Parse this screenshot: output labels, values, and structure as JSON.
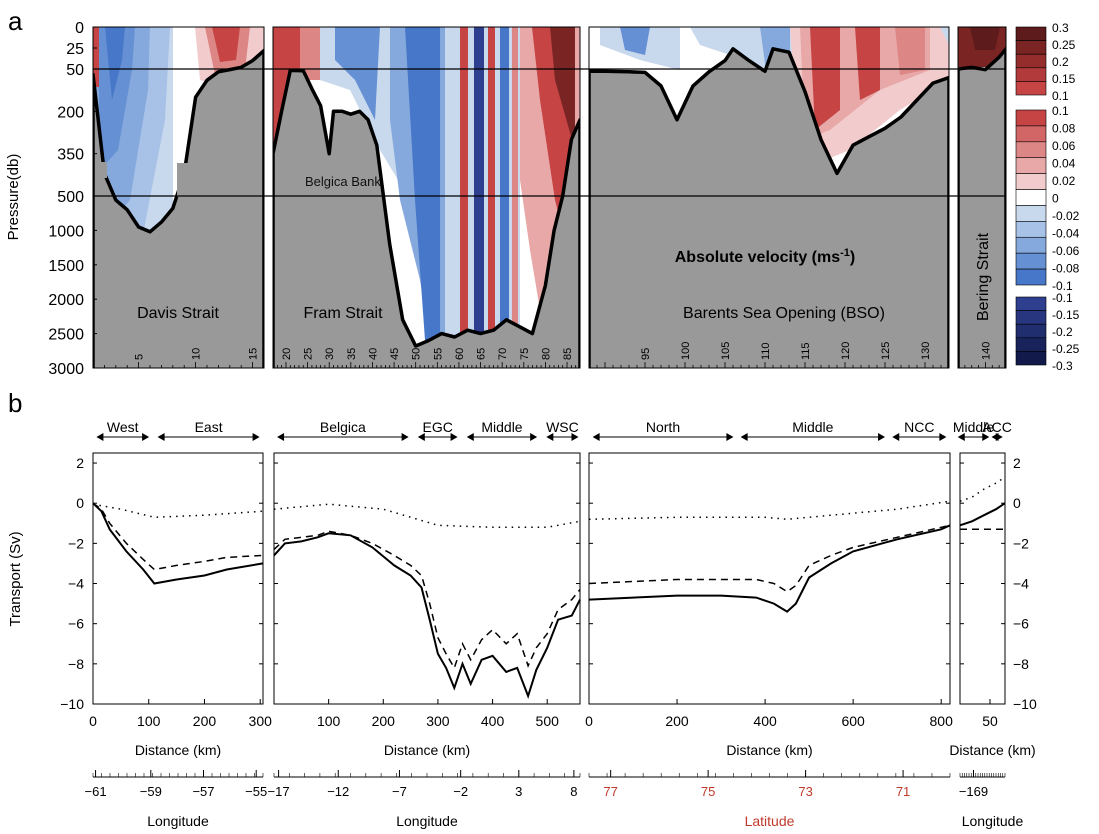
{
  "panel_labels": [
    "a",
    "b"
  ],
  "colors": {
    "land": "#999999",
    "red_strong": [
      "#5e1b1b",
      "#7a2424",
      "#962d2d",
      "#b33a3a",
      "#c64444"
    ],
    "red_weak": [
      "#c64444",
      "#d26565",
      "#dd8686",
      "#e8a8a8",
      "#f2cccc"
    ],
    "blue_weak": [
      "#c8d9ee",
      "#a7c2e6",
      "#86a9dd",
      "#6590d3",
      "#4777c8"
    ],
    "blue_strong": [
      "#2f3f8f",
      "#27367e",
      "#202d6e",
      "#18235c",
      "#111a4b"
    ]
  },
  "top": {
    "ylabel": "Pressure(db)",
    "ytick_labels": [
      "0",
      "25",
      "50",
      "200",
      "350",
      "500",
      "1000",
      "1500",
      "2000",
      "2500",
      "3000"
    ],
    "center_title_main": "Absolute velocity (ms",
    "center_title_sup": "-1",
    "center_title_end": ")",
    "annotation": "Belgica Bank",
    "panels": [
      {
        "name": "Davis Strait",
        "station_ticks": [
          "5",
          "10",
          "15"
        ]
      },
      {
        "name": "Fram Strait",
        "station_ticks": [
          "20",
          "25",
          "30",
          "35",
          "40",
          "45",
          "50",
          "55",
          "60",
          "65",
          "70",
          "75",
          "80",
          "85"
        ]
      },
      {
        "name": "Barents Sea Opening (BSO)",
        "station_ticks": [
          "95",
          "100",
          "105",
          "110",
          "115",
          "120",
          "125",
          "130"
        ]
      },
      {
        "name": "Bering Strait",
        "station_ticks": [
          "140"
        ]
      }
    ],
    "colorbars": [
      {
        "labels": [
          "0.3",
          "0.25",
          "0.2",
          "0.15",
          "0.1"
        ]
      },
      {
        "labels": [
          "0.1",
          "0.08",
          "0.06",
          "0.04",
          "0.02",
          "0",
          "-0.02",
          "-0.04",
          "-0.06",
          "-0.08",
          "-0.1"
        ]
      },
      {
        "labels": [
          "-0.1",
          "-0.15",
          "-0.2",
          "-0.25",
          "-0.3"
        ]
      }
    ]
  },
  "bottom": {
    "ylabel": "Transport (Sv)",
    "ytick_labels": [
      "2",
      "0",
      "−2",
      "−4",
      "−6",
      "−8",
      "−10"
    ],
    "xlabel": "Distance (km)",
    "coord_label": "Longitude",
    "coord_label_lat": "Latitude",
    "panels": [
      {
        "regions": [
          "West",
          "East"
        ],
        "xticks": [
          "0",
          "100",
          "200",
          "300"
        ],
        "coord_ticks": [
          "−61",
          "−59",
          "−57",
          "−55"
        ]
      },
      {
        "regions": [
          "Belgica",
          "EGC",
          "Middle",
          "WSC"
        ],
        "xticks": [
          "100",
          "200",
          "300",
          "400",
          "500"
        ],
        "coord_ticks": [
          "−17",
          "−12",
          "−7",
          "−2",
          "3",
          "8"
        ]
      },
      {
        "regions": [
          "North",
          "Middle",
          "NCC"
        ],
        "xticks": [
          "0",
          "200",
          "400",
          "600",
          "800"
        ],
        "coord_ticks": [
          "77",
          "75",
          "73",
          "71"
        ]
      },
      {
        "regions": [
          "Middle",
          "ACC"
        ],
        "xticks": [
          "50"
        ],
        "coord_ticks": [
          "−169"
        ]
      }
    ]
  },
  "chart_data": [
    {
      "type": "heatmap",
      "title": "Absolute velocity (ms-1)",
      "ylabel": "Pressure(db)",
      "ylim": [
        0,
        3000
      ],
      "y_scale": "piecewise: 0-50, 50-500, 500-3000",
      "colorbar_levels": [
        -0.3,
        -0.25,
        -0.2,
        -0.15,
        -0.1,
        -0.08,
        -0.06,
        -0.04,
        -0.02,
        0,
        0.02,
        0.04,
        0.06,
        0.08,
        0.1,
        0.15,
        0.2,
        0.25,
        0.3
      ],
      "sections": [
        {
          "name": "Davis Strait",
          "stations": [
            1,
            16
          ],
          "bottom_depth_db": [
            [
              1,
              70
            ],
            [
              2,
              420
            ],
            [
              3,
              560
            ],
            [
              4,
              700
            ],
            [
              5,
              950
            ],
            [
              6,
              1020
            ],
            [
              7,
              880
            ],
            [
              8,
              680
            ],
            [
              9,
              420
            ],
            [
              10,
              150
            ],
            [
              11,
              90
            ],
            [
              12,
              60
            ],
            [
              13,
              52
            ],
            [
              14,
              48
            ],
            [
              15,
              40
            ],
            [
              16,
              28
            ]
          ]
        },
        {
          "name": "Fram Strait",
          "stations": [
            17,
            88
          ],
          "bottom_depth_db": [
            [
              17,
              350
            ],
            [
              19,
              200
            ],
            [
              21,
              55
            ],
            [
              24,
              56
            ],
            [
              26,
              120
            ],
            [
              28,
              180
            ],
            [
              30,
              350
            ],
            [
              31,
              200
            ],
            [
              33,
              200
            ],
            [
              35,
              210
            ],
            [
              37,
              200
            ],
            [
              39,
              230
            ],
            [
              41,
              320
            ],
            [
              44,
              1200
            ],
            [
              47,
              2300
            ],
            [
              50,
              2680
            ],
            [
              53,
              2600
            ],
            [
              56,
              2500
            ],
            [
              59,
              2550
            ],
            [
              62,
              2450
            ],
            [
              65,
              2500
            ],
            [
              68,
              2450
            ],
            [
              71,
              2300
            ],
            [
              74,
              2400
            ],
            [
              77,
              2500
            ],
            [
              80,
              1800
            ],
            [
              82,
              1000
            ],
            [
              84,
              500
            ],
            [
              86,
              300
            ],
            [
              88,
              230
            ]
          ]
        },
        {
          "name": "Barents Sea Opening (BSO)",
          "stations": [
            88,
            133
          ],
          "bottom_depth_db": [
            [
              88,
              58
            ],
            [
              90,
              58
            ],
            [
              93,
              60
            ],
            [
              95,
              62
            ],
            [
              97,
              110
            ],
            [
              99,
              230
            ],
            [
              101,
              110
            ],
            [
              103,
              60
            ],
            [
              105,
              40
            ],
            [
              106,
              26
            ],
            [
              108,
              40
            ],
            [
              110,
              58
            ],
            [
              111,
              26
            ],
            [
              113,
              30
            ],
            [
              115,
              130
            ],
            [
              117,
              300
            ],
            [
              119,
              420
            ],
            [
              121,
              320
            ],
            [
              123,
              290
            ],
            [
              125,
              260
            ],
            [
              127,
              220
            ],
            [
              129,
              160
            ],
            [
              131,
              100
            ],
            [
              133,
              80
            ]
          ]
        },
        {
          "name": "Bering Strait",
          "stations": [
            136,
            143
          ],
          "bottom_depth_db": [
            [
              136,
              50
            ],
            [
              138,
              48
            ],
            [
              140,
              52
            ],
            [
              142,
              36
            ],
            [
              143,
              26
            ]
          ]
        }
      ]
    },
    {
      "type": "line",
      "ylabel": "Transport (Sv)",
      "xlabel": "Distance (km)",
      "ylim": [
        -10,
        2.5
      ],
      "panels": [
        {
          "name": "Davis Strait",
          "xlim": [
            0,
            305
          ],
          "series": [
            {
              "style": "solid",
              "x": [
                0,
                15,
                30,
                60,
                90,
                110,
                150,
                200,
                240,
                305
              ],
              "y": [
                0,
                -0.4,
                -1.3,
                -2.4,
                -3.3,
                -4.0,
                -3.8,
                -3.6,
                -3.3,
                -3.0
              ]
            },
            {
              "style": "dashed",
              "x": [
                0,
                15,
                30,
                60,
                90,
                110,
                150,
                200,
                240,
                305
              ],
              "y": [
                0,
                -0.3,
                -1.0,
                -2.0,
                -2.8,
                -3.3,
                -3.1,
                -2.9,
                -2.7,
                -2.6
              ]
            },
            {
              "style": "dotted",
              "x": [
                0,
                50,
                110,
                200,
                305
              ],
              "y": [
                -0.05,
                -0.3,
                -0.7,
                -0.6,
                -0.4
              ]
            }
          ]
        },
        {
          "name": "Fram Strait",
          "xlim": [
            0,
            560
          ],
          "series": [
            {
              "style": "solid",
              "x": [
                0,
                20,
                50,
                80,
                100,
                140,
                180,
                220,
                250,
                270,
                285,
                300,
                315,
                330,
                345,
                360,
                380,
                400,
                425,
                445,
                465,
                480,
                500,
                520,
                545,
                560
              ],
              "y": [
                -2.6,
                -2.0,
                -1.9,
                -1.7,
                -1.5,
                -1.6,
                -2.2,
                -3.1,
                -3.6,
                -4.2,
                -5.8,
                -7.5,
                -8.2,
                -9.2,
                -8.0,
                -9.0,
                -7.8,
                -7.6,
                -8.4,
                -8.2,
                -9.6,
                -8.3,
                -7.2,
                -5.8,
                -5.6,
                -4.8
              ]
            },
            {
              "style": "dashed",
              "x": [
                0,
                20,
                50,
                80,
                100,
                140,
                180,
                220,
                250,
                270,
                285,
                300,
                315,
                330,
                345,
                360,
                380,
                400,
                425,
                445,
                465,
                480,
                500,
                520,
                545,
                560
              ],
              "y": [
                -2.3,
                -1.8,
                -1.7,
                -1.6,
                -1.4,
                -1.6,
                -2.0,
                -2.6,
                -3.1,
                -3.6,
                -5.0,
                -6.7,
                -7.5,
                -8.2,
                -7.0,
                -7.8,
                -6.8,
                -6.3,
                -7.0,
                -6.5,
                -8.1,
                -7.2,
                -6.5,
                -5.3,
                -4.8,
                -4.3
              ]
            },
            {
              "style": "dotted",
              "x": [
                0,
                100,
                200,
                300,
                400,
                500,
                560
              ],
              "y": [
                -0.3,
                -0.05,
                -0.3,
                -1.1,
                -1.2,
                -1.2,
                -0.9
              ]
            }
          ]
        },
        {
          "name": "Barents Sea Opening (BSO)",
          "xlim": [
            0,
            820
          ],
          "series": [
            {
              "style": "solid",
              "x": [
                0,
                100,
                200,
                300,
                380,
                420,
                450,
                470,
                500,
                550,
                600,
                700,
                800,
                820
              ],
              "y": [
                -4.8,
                -4.7,
                -4.6,
                -4.6,
                -4.7,
                -5.0,
                -5.4,
                -5.0,
                -3.7,
                -3.0,
                -2.4,
                -1.8,
                -1.3,
                -1.1
              ]
            },
            {
              "style": "dashed",
              "x": [
                0,
                100,
                200,
                300,
                380,
                420,
                450,
                470,
                500,
                550,
                600,
                700,
                800,
                820
              ],
              "y": [
                -4.0,
                -3.9,
                -3.8,
                -3.8,
                -3.8,
                -4.0,
                -4.4,
                -4.1,
                -3.1,
                -2.6,
                -2.2,
                -1.7,
                -1.2,
                -1.1
              ]
            },
            {
              "style": "dotted",
              "x": [
                0,
                200,
                400,
                450,
                600,
                700,
                820
              ],
              "y": [
                -0.8,
                -0.7,
                -0.7,
                -0.8,
                -0.5,
                -0.3,
                0.1
              ]
            }
          ]
        },
        {
          "name": "Bering Strait",
          "xlim": [
            0,
            75
          ],
          "series": [
            {
              "style": "solid",
              "x": [
                0,
                20,
                40,
                60,
                75
              ],
              "y": [
                -1.1,
                -0.9,
                -0.6,
                -0.3,
                0
              ]
            },
            {
              "style": "dashed",
              "x": [
                0,
                20,
                40,
                60,
                75
              ],
              "y": [
                -1.3,
                -1.3,
                -1.3,
                -1.3,
                -1.3
              ]
            },
            {
              "style": "dotted",
              "x": [
                0,
                20,
                40,
                60,
                75
              ],
              "y": [
                0.1,
                0.3,
                0.7,
                1.0,
                1.3
              ]
            }
          ]
        }
      ]
    }
  ]
}
